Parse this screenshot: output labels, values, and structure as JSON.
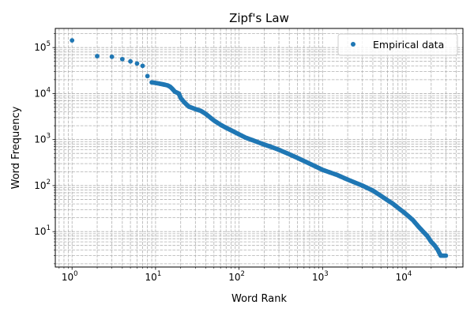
{
  "chart_data": {
    "type": "scatter",
    "title": "Zipf's Law",
    "xlabel": "Word Rank",
    "ylabel": "Word Frequency",
    "xscale": "log",
    "yscale": "log",
    "xlim": [
      0.63,
      48000
    ],
    "ylim": [
      1.7,
      260000
    ],
    "grid": "major and minor, dashed",
    "legend": {
      "entries": [
        "Empirical data"
      ],
      "placement": "top-right"
    },
    "x_ticks": [
      {
        "base": "10",
        "exp": "0",
        "value": 1
      },
      {
        "base": "10",
        "exp": "1",
        "value": 10
      },
      {
        "base": "10",
        "exp": "2",
        "value": 100
      },
      {
        "base": "10",
        "exp": "3",
        "value": 1000
      },
      {
        "base": "10",
        "exp": "4",
        "value": 10000
      }
    ],
    "y_ticks": [
      {
        "base": "10",
        "exp": "1",
        "value": 10
      },
      {
        "base": "10",
        "exp": "2",
        "value": 100
      },
      {
        "base": "10",
        "exp": "3",
        "value": 1000
      },
      {
        "base": "10",
        "exp": "4",
        "value": 10000
      },
      {
        "base": "10",
        "exp": "5",
        "value": 100000
      }
    ],
    "series": [
      {
        "name": "Empirical data",
        "color": "#1f77b4",
        "points": [
          [
            1,
            143000
          ],
          [
            2,
            65000
          ],
          [
            3,
            63000
          ],
          [
            4,
            56000
          ],
          [
            5,
            50000
          ],
          [
            6,
            45000
          ],
          [
            7,
            40000
          ],
          [
            8,
            24000
          ],
          [
            9,
            17500
          ],
          [
            10,
            17000
          ],
          [
            11,
            16500
          ],
          [
            12,
            16000
          ],
          [
            13,
            15500
          ],
          [
            14,
            15000
          ],
          [
            15,
            14000
          ],
          [
            16,
            12500
          ],
          [
            17,
            11000
          ],
          [
            18,
            10500
          ],
          [
            19,
            10000
          ],
          [
            20,
            8000
          ],
          [
            22,
            6500
          ],
          [
            25,
            5200
          ],
          [
            30,
            4600
          ],
          [
            35,
            4200
          ],
          [
            40,
            3600
          ],
          [
            50,
            2600
          ],
          [
            60,
            2100
          ],
          [
            70,
            1800
          ],
          [
            80,
            1600
          ],
          [
            100,
            1300
          ],
          [
            120,
            1100
          ],
          [
            150,
            950
          ],
          [
            200,
            780
          ],
          [
            250,
            680
          ],
          [
            300,
            600
          ],
          [
            400,
            480
          ],
          [
            500,
            400
          ],
          [
            700,
            300
          ],
          [
            1000,
            220
          ],
          [
            1500,
            170
          ],
          [
            2000,
            135
          ],
          [
            3000,
            100
          ],
          [
            4000,
            78
          ],
          [
            5000,
            60
          ],
          [
            6000,
            48
          ],
          [
            7000,
            40
          ],
          [
            8000,
            33
          ],
          [
            9000,
            28
          ],
          [
            10000,
            24
          ],
          [
            12000,
            18
          ],
          [
            14000,
            13
          ],
          [
            16000,
            10
          ],
          [
            18000,
            8
          ],
          [
            20000,
            6
          ],
          [
            22000,
            5
          ],
          [
            24000,
            4
          ],
          [
            26000,
            3
          ],
          [
            28000,
            3
          ],
          [
            30000,
            3
          ]
        ]
      }
    ]
  }
}
